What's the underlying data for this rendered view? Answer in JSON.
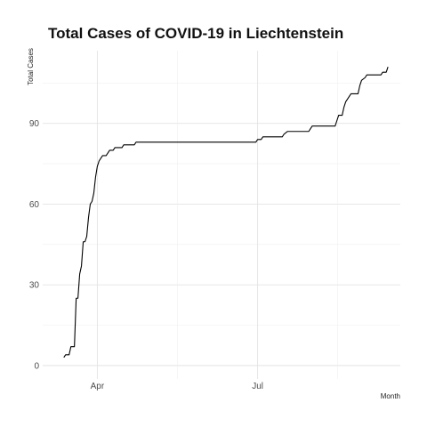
{
  "chart_data": {
    "type": "line",
    "title": "Total Cases of COVID-19 in Liechtenstein",
    "xlabel": "Month",
    "ylabel": "Total Cases",
    "x_ticks": [
      {
        "label": "Apr",
        "date": "2020-04-01"
      },
      {
        "label": "Jul",
        "date": "2020-07-01"
      }
    ],
    "y_ticks": [
      0,
      30,
      60,
      90
    ],
    "xlim": [
      "2020-03-01",
      "2020-09-20"
    ],
    "ylim": [
      -5,
      117
    ],
    "grid": true,
    "series": [
      {
        "color": "#000000",
        "points": [
          [
            "2020-03-13",
            3
          ],
          [
            "2020-03-14",
            4
          ],
          [
            "2020-03-16",
            4
          ],
          [
            "2020-03-17",
            7
          ],
          [
            "2020-03-19",
            7
          ],
          [
            "2020-03-20",
            25
          ],
          [
            "2020-03-21",
            25
          ],
          [
            "2020-03-22",
            34
          ],
          [
            "2020-03-23",
            37
          ],
          [
            "2020-03-24",
            46
          ],
          [
            "2020-03-25",
            46
          ],
          [
            "2020-03-26",
            48
          ],
          [
            "2020-03-27",
            55
          ],
          [
            "2020-03-28",
            60
          ],
          [
            "2020-03-29",
            61
          ],
          [
            "2020-03-30",
            64
          ],
          [
            "2020-03-31",
            70
          ],
          [
            "2020-04-01",
            74
          ],
          [
            "2020-04-02",
            76
          ],
          [
            "2020-04-03",
            77
          ],
          [
            "2020-04-04",
            78
          ],
          [
            "2020-04-06",
            78
          ],
          [
            "2020-04-07",
            79
          ],
          [
            "2020-04-08",
            80
          ],
          [
            "2020-04-10",
            80
          ],
          [
            "2020-04-11",
            81
          ],
          [
            "2020-04-15",
            81
          ],
          [
            "2020-04-16",
            82
          ],
          [
            "2020-04-22",
            82
          ],
          [
            "2020-04-23",
            83
          ],
          [
            "2020-06-30",
            83
          ],
          [
            "2020-07-01",
            84
          ],
          [
            "2020-07-03",
            84
          ],
          [
            "2020-07-04",
            85
          ],
          [
            "2020-07-15",
            85
          ],
          [
            "2020-07-16",
            86
          ],
          [
            "2020-07-18",
            87
          ],
          [
            "2020-07-30",
            87
          ],
          [
            "2020-07-31",
            88
          ],
          [
            "2020-08-01",
            89
          ],
          [
            "2020-08-14",
            89
          ],
          [
            "2020-08-15",
            91
          ],
          [
            "2020-08-16",
            93
          ],
          [
            "2020-08-18",
            93
          ],
          [
            "2020-08-19",
            96
          ],
          [
            "2020-08-20",
            98
          ],
          [
            "2020-08-22",
            100
          ],
          [
            "2020-08-23",
            101
          ],
          [
            "2020-08-27",
            101
          ],
          [
            "2020-08-28",
            104
          ],
          [
            "2020-08-29",
            106
          ],
          [
            "2020-08-31",
            107
          ],
          [
            "2020-09-01",
            108
          ],
          [
            "2020-09-09",
            108
          ],
          [
            "2020-09-10",
            109
          ],
          [
            "2020-09-12",
            109
          ],
          [
            "2020-09-13",
            111
          ]
        ]
      }
    ]
  }
}
